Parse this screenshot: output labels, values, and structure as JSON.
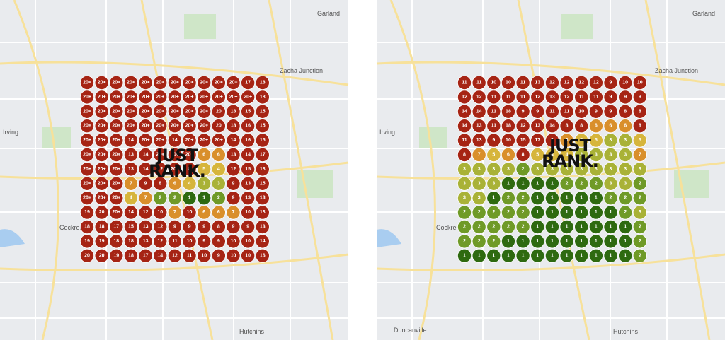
{
  "maps": [
    {
      "labels": [
        {
          "text": "Garland"
        },
        {
          "text": "Irving"
        },
        {
          "text": "Zacha Junction"
        },
        {
          "text": "Cockrell"
        },
        {
          "text": "Hutchins"
        }
      ],
      "logo": [
        "JUST",
        "RANK."
      ],
      "grid": [
        [
          "20+",
          "20+",
          "20+",
          "20+",
          "20+",
          "20+",
          "20+",
          "20+",
          "20+",
          "20+",
          "20+",
          17,
          18
        ],
        [
          "20+",
          "20+",
          "20+",
          "20+",
          "20+",
          "20+",
          "20+",
          "20+",
          "20+",
          "20+",
          "20+",
          "20+",
          18
        ],
        [
          "20+",
          "20+",
          "20+",
          "20+",
          "20+",
          "20+",
          "20+",
          "20+",
          "20+",
          20,
          18,
          15,
          15
        ],
        [
          "20+",
          "20+",
          "20+",
          "20+",
          "20+",
          "20+",
          "20+",
          "20+",
          "20+",
          20,
          18,
          16,
          15
        ],
        [
          "20+",
          "20+",
          "20+",
          14,
          "20+",
          "20+",
          14,
          "20+",
          "20+",
          "20+",
          14,
          16,
          15
        ],
        [
          "20+",
          "20+",
          "20+",
          13,
          14,
          "20+",
          "20+",
          "20+",
          6,
          6,
          13,
          14,
          17
        ],
        [
          "20+",
          "20+",
          "20+",
          13,
          14,
          12,
          "20+",
          8,
          5,
          4,
          12,
          15,
          18
        ],
        [
          "20+",
          "20+",
          "20+",
          7,
          9,
          8,
          6,
          4,
          3,
          3,
          9,
          13,
          15
        ],
        [
          "20+",
          "20+",
          "20+",
          4,
          7,
          2,
          2,
          1,
          1,
          2,
          9,
          13,
          13
        ],
        [
          19,
          20,
          "20+",
          14,
          12,
          10,
          7,
          10,
          6,
          6,
          7,
          10,
          13
        ],
        [
          18,
          18,
          17,
          15,
          13,
          12,
          9,
          9,
          9,
          8,
          9,
          9,
          13
        ],
        [
          19,
          19,
          18,
          18,
          13,
          12,
          11,
          10,
          9,
          9,
          10,
          10,
          14
        ],
        [
          20,
          20,
          19,
          18,
          17,
          14,
          12,
          11,
          10,
          9,
          10,
          10,
          16
        ]
      ]
    },
    {
      "labels": [
        {
          "text": "Garland"
        },
        {
          "text": "Irving"
        },
        {
          "text": "Zacha Junction"
        },
        {
          "text": "Cockrell"
        },
        {
          "text": "Duncanville"
        },
        {
          "text": "Hutchins"
        }
      ],
      "logo": [
        "JUST",
        "RANK."
      ],
      "grid": [
        [
          11,
          11,
          10,
          10,
          11,
          13,
          12,
          12,
          12,
          12,
          9,
          10,
          10
        ],
        [
          12,
          12,
          11,
          11,
          11,
          12,
          13,
          12,
          11,
          11,
          9,
          9,
          9
        ],
        [
          14,
          14,
          11,
          18,
          9,
          9,
          11,
          11,
          10,
          9,
          9,
          8,
          8
        ],
        [
          14,
          13,
          11,
          18,
          12,
          13,
          14,
          8,
          8,
          6,
          6,
          6,
          8
        ],
        [
          11,
          13,
          9,
          10,
          15,
          17,
          9,
          6,
          5,
          5,
          3,
          3,
          5
        ],
        [
          8,
          7,
          5,
          6,
          8,
          5,
          4,
          4,
          3,
          3,
          3,
          3,
          7
        ],
        [
          3,
          3,
          3,
          3,
          2,
          3,
          3,
          3,
          3,
          3,
          3,
          3,
          3
        ],
        [
          3,
          3,
          3,
          1,
          1,
          1,
          1,
          2,
          2,
          2,
          3,
          3,
          2
        ],
        [
          3,
          3,
          1,
          2,
          2,
          1,
          1,
          1,
          1,
          1,
          2,
          2,
          2
        ],
        [
          2,
          2,
          2,
          2,
          2,
          1,
          1,
          1,
          1,
          1,
          1,
          2,
          3
        ],
        [
          2,
          2,
          2,
          2,
          2,
          1,
          1,
          1,
          1,
          1,
          1,
          1,
          2
        ],
        [
          2,
          2,
          2,
          1,
          1,
          1,
          1,
          1,
          1,
          1,
          1,
          1,
          2
        ],
        [
          1,
          1,
          1,
          1,
          1,
          1,
          1,
          1,
          1,
          1,
          1,
          1,
          2
        ]
      ]
    }
  ]
}
